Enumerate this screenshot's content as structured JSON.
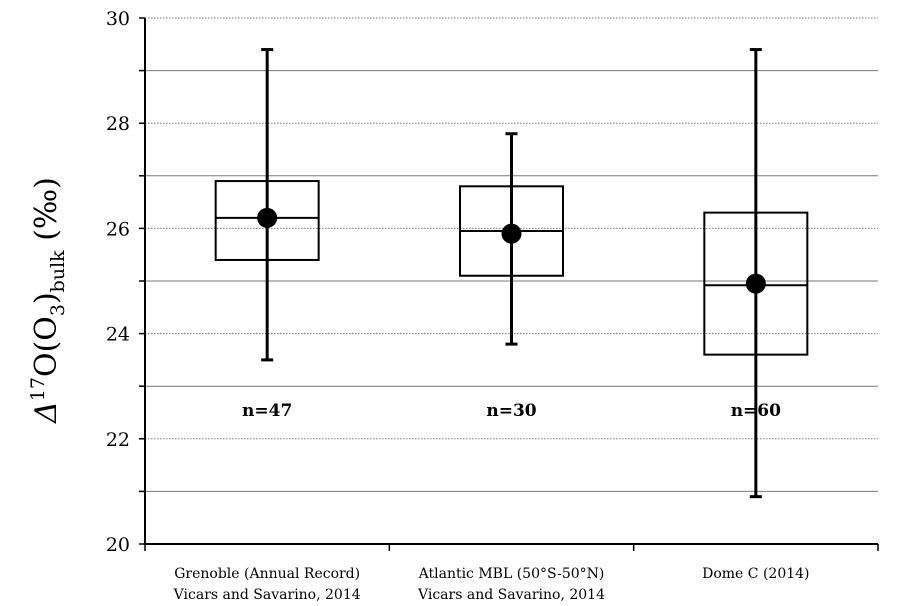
{
  "chart_data": {
    "type": "boxplot",
    "ylabel": {
      "delta": "Δ",
      "sup": "17",
      "mid": "O(O",
      "sub3": "3",
      "paren": ")",
      "subbulk": "bulk",
      "unit": " (‰)"
    },
    "ylim": [
      20,
      30
    ],
    "yticks": [
      "20",
      "22",
      "24",
      "26",
      "28",
      "30"
    ],
    "grid": true,
    "categories": [
      {
        "line1": "Grenoble (Annual Record)",
        "line2": "Vicars and Savarino, 2014",
        "n_label": "n=47",
        "whisker_low": 23.5,
        "q1": 25.4,
        "median": 26.2,
        "mean": 26.2,
        "q3": 26.9,
        "whisker_high": 29.4
      },
      {
        "line1": "Atlantic MBL (50°S-50°N)",
        "line2": "Vicars and Savarino, 2014",
        "n_label": "n=30",
        "whisker_low": 23.8,
        "q1": 25.1,
        "median": 25.95,
        "mean": 25.9,
        "q3": 26.8,
        "whisker_high": 27.8
      },
      {
        "line1": "Dome C (2014)",
        "line2": "",
        "n_label": "n=60",
        "whisker_low": 20.9,
        "q1": 23.6,
        "median": 24.92,
        "mean": 24.95,
        "q3": 26.3,
        "whisker_high": 29.4
      }
    ],
    "n_label_y": 22.55
  }
}
